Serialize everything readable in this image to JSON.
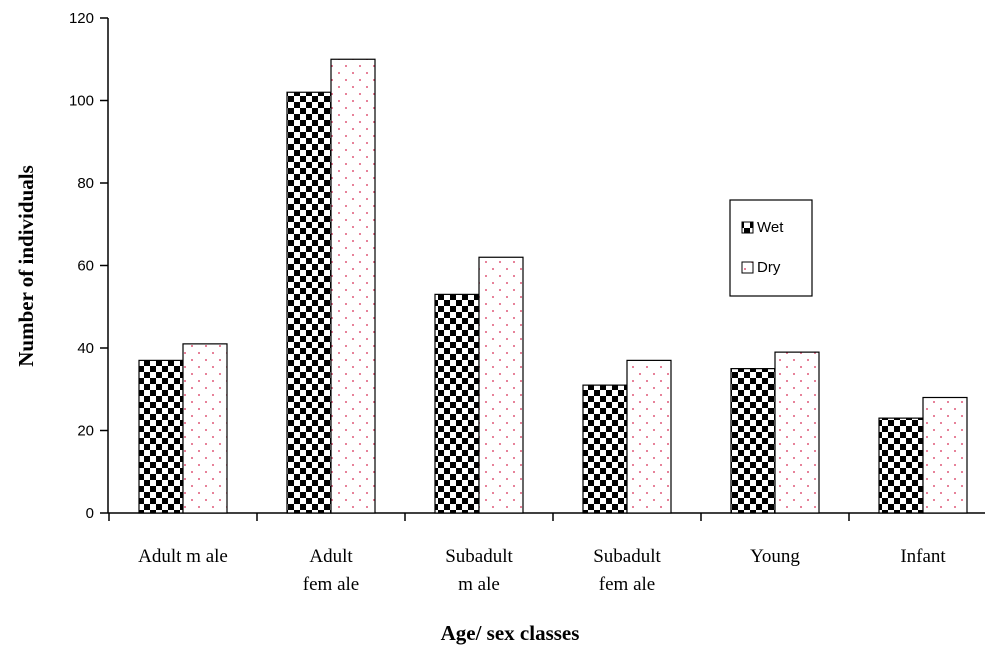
{
  "chart_data": {
    "type": "bar",
    "title": "",
    "xlabel": "Age/ sex classes",
    "ylabel": "Number of individuals",
    "categories": [
      [
        "Adult m ale"
      ],
      [
        "Adult",
        "fem ale"
      ],
      [
        "Subadult",
        "m ale"
      ],
      [
        "Subadult",
        "fem ale"
      ],
      [
        "Young"
      ],
      [
        "Infant"
      ]
    ],
    "series": [
      {
        "name": "Wet",
        "values": [
          37,
          102,
          53,
          31,
          35,
          23
        ],
        "pattern": "checker",
        "color": "#000000"
      },
      {
        "name": "Dry",
        "values": [
          41,
          110,
          62,
          37,
          39,
          28
        ],
        "pattern": "dots",
        "color": "#e05a7a"
      }
    ],
    "ylim": [
      0,
      120
    ],
    "yticks": [
      0,
      20,
      40,
      60,
      80,
      100,
      120
    ],
    "grid": false,
    "legend_position": "right"
  }
}
